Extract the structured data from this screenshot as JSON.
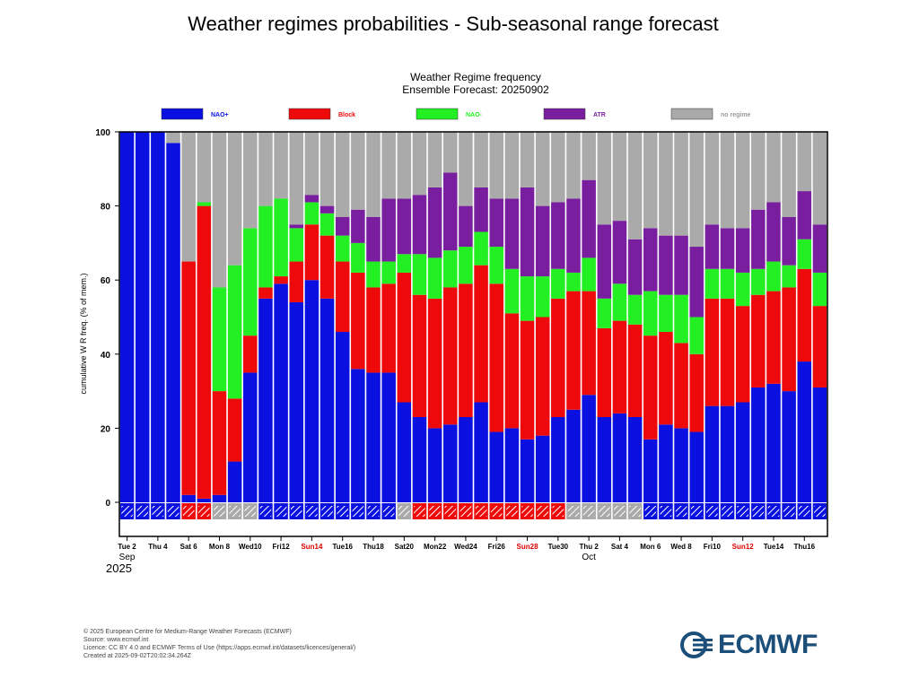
{
  "page_title": "Weather regimes probabilities - Sub-seasonal range forecast",
  "colors": {
    "nao_plus": "#0a10e0",
    "block": "#ee0a0a",
    "nao_minus": "#22f022",
    "atr": "#7a1ea0",
    "no_regime": "#aaaaaa",
    "red_text": "#dd0000",
    "logo": "#1b4f7a"
  },
  "chart_data": {
    "type": "bar",
    "stacked": true,
    "title": "Weather Regime frequency",
    "subtitle": "Ensemble Forecast: 20250902",
    "xlabel": "",
    "ylabel": "cumulative W R freq. (% of mem.)",
    "ylim": [
      0,
      100
    ],
    "yticks": [
      0,
      20,
      40,
      60,
      80,
      100
    ],
    "grid": false,
    "legend_position": "top",
    "legend": [
      {
        "key": "nao_plus",
        "label": "NAO+"
      },
      {
        "key": "block",
        "label": "Block"
      },
      {
        "key": "nao_minus",
        "label": "NAO-"
      },
      {
        "key": "atr",
        "label": "ATR"
      },
      {
        "key": "no_regime",
        "label": "no regime"
      }
    ],
    "x_tick_labels": [
      {
        "index": 0,
        "label": "Tue 2",
        "red": false
      },
      {
        "index": 2,
        "label": "Thu 4",
        "red": false
      },
      {
        "index": 4,
        "label": "Sat 6",
        "red": false
      },
      {
        "index": 6,
        "label": "Mon 8",
        "red": false
      },
      {
        "index": 8,
        "label": "Wed10",
        "red": false
      },
      {
        "index": 10,
        "label": "Fri12",
        "red": false
      },
      {
        "index": 12,
        "label": "Sun14",
        "red": true
      },
      {
        "index": 14,
        "label": "Tue16",
        "red": false
      },
      {
        "index": 16,
        "label": "Thu18",
        "red": false
      },
      {
        "index": 18,
        "label": "Sat20",
        "red": false
      },
      {
        "index": 20,
        "label": "Mon22",
        "red": false
      },
      {
        "index": 22,
        "label": "Wed24",
        "red": false
      },
      {
        "index": 24,
        "label": "Fri26",
        "red": false
      },
      {
        "index": 26,
        "label": "Sun28",
        "red": true
      },
      {
        "index": 28,
        "label": "Tue30",
        "red": false
      },
      {
        "index": 30,
        "label": "Thu 2",
        "red": false
      },
      {
        "index": 32,
        "label": "Sat 4",
        "red": false
      },
      {
        "index": 34,
        "label": "Mon 6",
        "red": false
      },
      {
        "index": 36,
        "label": "Wed 8",
        "red": false
      },
      {
        "index": 38,
        "label": "Fri10",
        "red": false
      },
      {
        "index": 40,
        "label": "Sun12",
        "red": true
      },
      {
        "index": 42,
        "label": "Tue14",
        "red": false
      },
      {
        "index": 44,
        "label": "Thu16",
        "red": false
      }
    ],
    "month_labels": [
      {
        "index": 0,
        "label": "Sep"
      },
      {
        "index": 30,
        "label": "Oct"
      }
    ],
    "year_label": "2025",
    "series": [
      {
        "name": "NAO+",
        "key": "nao_plus",
        "values": [
          100,
          100,
          100,
          97,
          2,
          1,
          2,
          11,
          35,
          55,
          59,
          54,
          60,
          55,
          46,
          36,
          35,
          35,
          27,
          23,
          20,
          21,
          23,
          27,
          19,
          20,
          17,
          18,
          23,
          25,
          29,
          23,
          24,
          23,
          17,
          21,
          20,
          19,
          26,
          26,
          27,
          31,
          32,
          30,
          38,
          31
        ]
      },
      {
        "name": "Block",
        "key": "block",
        "values": [
          0,
          0,
          0,
          0,
          63,
          79,
          28,
          17,
          10,
          3,
          2,
          11,
          15,
          17,
          19,
          26,
          23,
          24,
          35,
          33,
          35,
          37,
          36,
          37,
          40,
          31,
          32,
          32,
          32,
          32,
          28,
          24,
          25,
          25,
          28,
          25,
          23,
          21,
          29,
          29,
          26,
          25,
          25,
          28,
          25,
          22
        ]
      },
      {
        "name": "NAO-",
        "key": "nao_minus",
        "values": [
          0,
          0,
          0,
          0,
          0,
          1,
          28,
          36,
          29,
          22,
          21,
          9,
          6,
          6,
          7,
          8,
          7,
          6,
          5,
          11,
          11,
          10,
          10,
          9,
          10,
          12,
          12,
          11,
          8,
          5,
          9,
          8,
          10,
          8,
          12,
          10,
          13,
          10,
          8,
          8,
          9,
          7,
          8,
          6,
          8,
          9
        ]
      },
      {
        "name": "ATR",
        "key": "atr",
        "values": [
          0,
          0,
          0,
          0,
          0,
          0,
          0,
          0,
          0,
          0,
          0,
          1,
          2,
          2,
          5,
          9,
          12,
          17,
          15,
          16,
          19,
          21,
          11,
          12,
          13,
          19,
          24,
          19,
          18,
          20,
          21,
          20,
          17,
          15,
          17,
          16,
          16,
          19,
          12,
          11,
          12,
          16,
          16,
          13,
          13,
          13
        ]
      },
      {
        "name": "no regime",
        "key": "no_regime",
        "values": [
          0,
          0,
          0,
          3,
          35,
          19,
          42,
          36,
          26,
          20,
          18,
          25,
          17,
          20,
          23,
          21,
          23,
          18,
          18,
          17,
          15,
          11,
          20,
          15,
          18,
          18,
          15,
          20,
          19,
          18,
          13,
          25,
          24,
          29,
          26,
          28,
          28,
          31,
          25,
          26,
          26,
          21,
          19,
          23,
          16,
          25
        ]
      }
    ],
    "bottom_row": [
      "nao_plus",
      "nao_plus",
      "nao_plus",
      "nao_plus",
      "block",
      "block",
      "no_regime",
      "no_regime",
      "no_regime",
      "nao_plus",
      "nao_plus",
      "nao_plus",
      "nao_plus",
      "nao_plus",
      "nao_plus",
      "nao_plus",
      "nao_plus",
      "nao_plus",
      "no_regime",
      "block",
      "block",
      "block",
      "block",
      "block",
      "block",
      "block",
      "block",
      "block",
      "block",
      "no_regime",
      "no_regime",
      "no_regime",
      "no_regime",
      "no_regime",
      "nao_plus",
      "nao_plus",
      "nao_plus",
      "nao_plus",
      "nao_plus",
      "nao_plus",
      "nao_plus",
      "nao_plus",
      "nao_plus",
      "nao_plus",
      "nao_plus",
      "nao_plus"
    ]
  },
  "footer": {
    "line1": "© 2025 European Centre for Medium-Range Weather Forecasts (ECMWF)",
    "line2": "Source: www.ecmwf.int",
    "line3": "Licence: CC BY 4.0 and ECMWF Terms of Use (https://apps.ecmwf.int/datasets/licences/general/)",
    "line4": "Created at 2025-09-02T20:02:34.264Z"
  },
  "logo": {
    "text": "ECMWF",
    "icon": "ecmwf-logo-icon"
  }
}
